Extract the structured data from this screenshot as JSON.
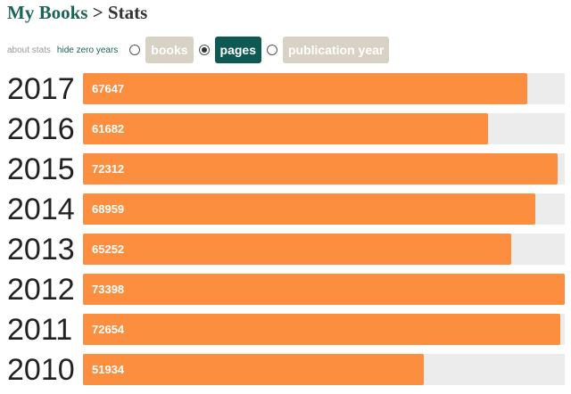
{
  "header": {
    "breadcrumb": "My Books",
    "separator": ">",
    "title": "Stats"
  },
  "controls": {
    "links": [
      "about stats",
      "hide zero years"
    ],
    "options": [
      "books",
      "pages",
      "publication year"
    ],
    "selected": 1
  },
  "chart_data": {
    "type": "bar",
    "orientation": "horizontal",
    "color": "#fc8e3f",
    "categories": [
      "2017",
      "2016",
      "2015",
      "2014",
      "2013",
      "2012",
      "2011",
      "2010"
    ],
    "values": [
      67647,
      61682,
      72312,
      68959,
      65252,
      73398,
      72654,
      51934
    ]
  }
}
